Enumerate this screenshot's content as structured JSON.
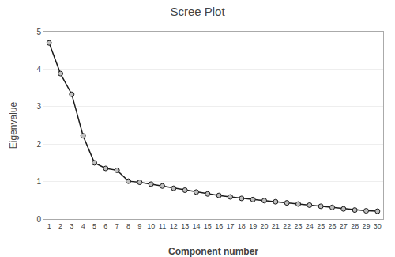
{
  "chart_data": {
    "type": "line",
    "title": "Scree Plot",
    "xlabel": "Component number",
    "ylabel": "Eigenvalue",
    "x": [
      1,
      2,
      3,
      4,
      5,
      6,
      7,
      8,
      9,
      10,
      11,
      12,
      13,
      14,
      15,
      16,
      17,
      18,
      19,
      20,
      21,
      22,
      23,
      24,
      25,
      26,
      27,
      28,
      29,
      30
    ],
    "values": [
      4.7,
      3.88,
      3.33,
      2.22,
      1.5,
      1.35,
      1.3,
      1.01,
      0.98,
      0.93,
      0.88,
      0.82,
      0.77,
      0.72,
      0.67,
      0.63,
      0.59,
      0.55,
      0.52,
      0.49,
      0.46,
      0.43,
      0.4,
      0.37,
      0.34,
      0.31,
      0.27,
      0.24,
      0.22,
      0.21
    ],
    "color": "#1a1a1a",
    "marker": "circle",
    "xlim": [
      0.5,
      30.5
    ],
    "xticks": [
      1,
      2,
      3,
      4,
      5,
      6,
      7,
      8,
      9,
      10,
      11,
      12,
      13,
      14,
      15,
      16,
      17,
      18,
      19,
      20,
      21,
      22,
      23,
      24,
      25,
      26,
      27,
      28,
      29,
      30
    ],
    "ylim": [
      0,
      5
    ],
    "yticks": [
      0,
      1,
      2,
      3,
      4,
      5
    ],
    "grid": true
  }
}
